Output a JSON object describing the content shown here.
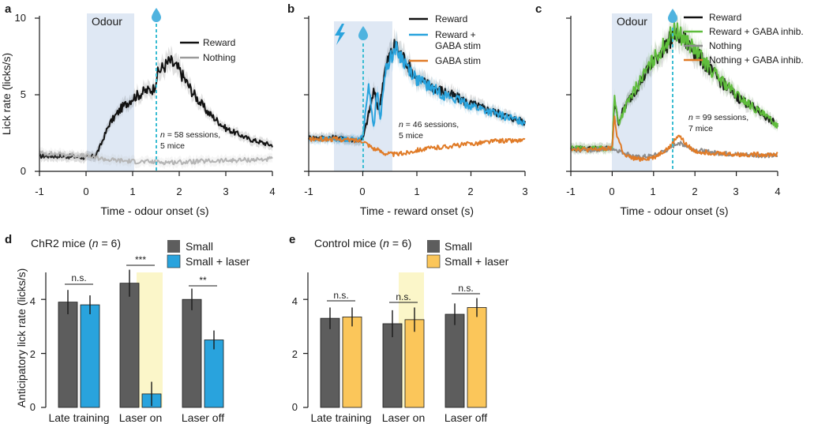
{
  "colors": {
    "black": "#111111",
    "grey": "#8c8c8c",
    "light_grey": "#c8c8c8",
    "blue": "#29a3dd",
    "orange": "#e07b27",
    "green": "#5fbd3c",
    "bar_grey": "#5d5d5d",
    "bar_yellow": "#fbc65a",
    "shade_blue": "#dfe8f4",
    "shade_yellow": "#fbf6c9",
    "cyan_dash": "#3bbdd3"
  },
  "panels": {
    "a": {
      "letter": "a",
      "shade_label": "Odour",
      "legend": [
        "Reward",
        "Nothing"
      ],
      "annotation_n": "n",
      "annotation_rest": " = 58 sessions,",
      "annotation_line2": "5 mice",
      "ylabel": "Lick rate (licks/s)",
      "xlabel": "Time - odour onset (s)",
      "xticks": [
        "-1",
        "0",
        "1",
        "2",
        "3",
        "4"
      ],
      "yticks": [
        "0",
        "5",
        "10"
      ],
      "icons": [
        "drop-icon"
      ]
    },
    "b": {
      "letter": "b",
      "legend": [
        "Reward",
        "Reward +",
        "GABA stim",
        "GABA stim"
      ],
      "annotation_n": "n",
      "annotation_rest": " = 46 sessions,",
      "annotation_line2": "5 mice",
      "xlabel": "Time - reward onset (s)",
      "xticks": [
        "-1",
        "0",
        "1",
        "2",
        "3"
      ],
      "icons": [
        "lightning-icon",
        "drop-icon"
      ]
    },
    "c": {
      "letter": "c",
      "shade_label": "Odour",
      "legend": [
        "Reward",
        "Reward + GABA inhib.",
        "Nothing",
        "Nothing + GABA inhib."
      ],
      "annotation_n": "n",
      "annotation_rest": " = 99 sessions,",
      "annotation_line2": "7 mice",
      "xlabel": "Time - odour onset (s)",
      "xticks": [
        "-1",
        "0",
        "1",
        "2",
        "3",
        "4"
      ],
      "icons": [
        "drop-icon"
      ]
    },
    "d": {
      "letter": "d",
      "title_pre": "ChR2 mice (",
      "title_n": "n",
      "title_post": " = 6)",
      "legend": [
        "Small",
        "Small + laser"
      ],
      "ylabel": "Anticipatory lick rate (licks/s)",
      "yticks": [
        "0",
        "2",
        "4"
      ],
      "groups": [
        "Late training",
        "Laser on",
        "Laser off"
      ],
      "sig": [
        "n.s.",
        "***",
        "**"
      ]
    },
    "e": {
      "letter": "e",
      "title_pre": "Control mice (",
      "title_n": "n",
      "title_post": " = 6)",
      "legend": [
        "Small",
        "Small + laser"
      ],
      "yticks": [
        "0",
        "2",
        "4"
      ],
      "groups": [
        "Late training",
        "Laser on",
        "Laser off"
      ],
      "sig": [
        "n.s.",
        "n.s.",
        "n.s."
      ]
    }
  },
  "chart_data": [
    {
      "panel": "a",
      "type": "line",
      "xlabel": "Time - odour onset (s)",
      "ylabel": "Lick rate (licks/s)",
      "xlim": [
        -1,
        4
      ],
      "ylim": [
        0,
        10
      ],
      "shaded_interval": [
        0,
        1
      ],
      "reward_time": 1.5,
      "series": [
        {
          "name": "Reward",
          "color": "#111111",
          "error_band": true,
          "x": [
            -1,
            -0.5,
            0,
            0.2,
            0.3,
            0.5,
            0.75,
            1.0,
            1.25,
            1.45,
            1.55,
            1.8,
            2.0,
            2.3,
            2.6,
            3.0,
            3.5,
            4.0
          ],
          "y": [
            1.0,
            1.0,
            0.9,
            1.0,
            1.6,
            3.1,
            4.1,
            4.8,
            5.2,
            5.4,
            6.5,
            7.2,
            6.6,
            5.1,
            3.9,
            2.8,
            2.1,
            1.7
          ]
        },
        {
          "name": "Nothing",
          "color": "#b4b4b4",
          "error_band": true,
          "x": [
            -1,
            -0.5,
            0,
            0.5,
            1.0,
            1.5,
            2.0,
            2.5,
            3.0,
            3.5,
            4.0
          ],
          "y": [
            1.2,
            1.1,
            1.0,
            0.75,
            0.65,
            0.6,
            0.6,
            0.65,
            0.7,
            0.75,
            0.8
          ]
        }
      ]
    },
    {
      "panel": "b",
      "type": "line",
      "xlabel": "Time - reward onset (s)",
      "xlim": [
        -1,
        3
      ],
      "ylim": [
        0,
        10
      ],
      "shaded_interval": [
        -0.55,
        0.53
      ],
      "reward_time": 0,
      "series": [
        {
          "name": "Reward",
          "color": "#111111",
          "error_band": true,
          "x": [
            -1,
            -0.5,
            -0.1,
            0,
            0.1,
            0.2,
            0.3,
            0.4,
            0.5,
            0.6,
            0.8,
            1.0,
            1.5,
            2.0,
            2.5,
            3.0
          ],
          "y": [
            2.2,
            2.2,
            2.0,
            2.1,
            3.6,
            5.2,
            4.0,
            6.5,
            7.6,
            8.2,
            7.2,
            6.0,
            5.2,
            4.4,
            3.8,
            3.2
          ]
        },
        {
          "name": "Reward + GABA stim",
          "color": "#29a3dd",
          "error_band": true,
          "x": [
            -1,
            -0.5,
            -0.1,
            0,
            0.05,
            0.12,
            0.2,
            0.27,
            0.32,
            0.4,
            0.5,
            0.6,
            0.8,
            1.0,
            1.5,
            2.0,
            2.5,
            3.0
          ],
          "y": [
            2.1,
            2.1,
            2.1,
            2.2,
            4.2,
            5.6,
            2.8,
            5.4,
            3.2,
            6.2,
            7.4,
            8.0,
            7.0,
            6.0,
            5.0,
            4.3,
            3.7,
            3.2
          ]
        },
        {
          "name": "GABA stim",
          "color": "#e07b27",
          "error_band": false,
          "x": [
            -1,
            -0.5,
            0,
            0.2,
            0.4,
            0.6,
            0.8,
            1.0,
            1.5,
            2.0,
            2.5,
            3.0
          ],
          "y": [
            2.1,
            2.1,
            2.0,
            1.5,
            1.2,
            1.1,
            1.2,
            1.4,
            1.6,
            1.8,
            2.0,
            2.0
          ]
        }
      ]
    },
    {
      "panel": "c",
      "type": "line",
      "xlabel": "Time - odour onset (s)",
      "xlim": [
        -1,
        4
      ],
      "ylim": [
        0,
        10
      ],
      "shaded_interval": [
        0,
        1
      ],
      "reward_time": 1.5,
      "series": [
        {
          "name": "Reward",
          "color": "#111111",
          "error_band": true,
          "x": [
            -1,
            -0.5,
            0,
            0.05,
            0.15,
            0.3,
            0.6,
            1.0,
            1.3,
            1.5,
            1.7,
            2.0,
            2.5,
            3.0,
            3.5,
            4.0
          ],
          "y": [
            1.5,
            1.5,
            1.5,
            4.6,
            3.2,
            4.2,
            5.5,
            7.2,
            8.2,
            9.0,
            8.7,
            7.8,
            6.2,
            4.9,
            4.0,
            3.0
          ]
        },
        {
          "name": "Reward + GABA inhib.",
          "color": "#5fbd3c",
          "error_band": true,
          "x": [
            -1,
            -0.5,
            0,
            0.05,
            0.15,
            0.3,
            0.6,
            1.0,
            1.3,
            1.5,
            1.7,
            2.0,
            2.5,
            3.0,
            3.5,
            4.0
          ],
          "y": [
            1.5,
            1.5,
            1.5,
            4.9,
            3.1,
            4.1,
            5.6,
            7.3,
            8.4,
            9.2,
            8.8,
            7.9,
            6.3,
            5.0,
            4.0,
            3.0
          ]
        },
        {
          "name": "Nothing",
          "color": "#8c8c8c",
          "error_band": false,
          "x": [
            -1,
            -0.5,
            0,
            0.3,
            0.6,
            1.0,
            1.4,
            1.6,
            2.0,
            2.5,
            3.0,
            4.0
          ],
          "y": [
            1.4,
            1.4,
            1.5,
            1.2,
            0.9,
            1.0,
            1.5,
            1.9,
            1.4,
            1.2,
            1.1,
            1.0
          ]
        },
        {
          "name": "Nothing + GABA inhib.",
          "color": "#e07b27",
          "error_band": false,
          "x": [
            -1,
            -0.5,
            0,
            0.05,
            0.12,
            0.3,
            0.6,
            1.0,
            1.4,
            1.6,
            1.8,
            2.0,
            2.5,
            3.0,
            4.0
          ],
          "y": [
            1.5,
            1.4,
            1.5,
            3.6,
            2.3,
            1.0,
            0.8,
            0.9,
            1.6,
            2.4,
            1.7,
            1.3,
            1.2,
            1.1,
            1.1
          ]
        }
      ]
    },
    {
      "panel": "d",
      "type": "bar",
      "title": "ChR2 mice (n = 6)",
      "ylabel": "Anticipatory lick rate (licks/s)",
      "ylim": [
        0,
        5
      ],
      "categories": [
        "Late training",
        "Laser on",
        "Laser off"
      ],
      "highlighted_category": "Laser on",
      "series": [
        {
          "name": "Small",
          "color": "#5d5d5d",
          "values": [
            3.9,
            4.6,
            4.0
          ],
          "errors": [
            0.45,
            0.5,
            0.4
          ]
        },
        {
          "name": "Small + laser",
          "color": "#29a3dd",
          "values": [
            3.8,
            0.5,
            2.5
          ],
          "errors": [
            0.35,
            0.45,
            0.35
          ]
        }
      ],
      "significance": [
        "n.s.",
        "***",
        "**"
      ]
    },
    {
      "panel": "e",
      "type": "bar",
      "title": "Control mice (n = 6)",
      "ylim": [
        0,
        5
      ],
      "categories": [
        "Late training",
        "Laser on",
        "Laser off"
      ],
      "highlighted_category": "Laser on",
      "series": [
        {
          "name": "Small",
          "color": "#5d5d5d",
          "values": [
            3.3,
            3.1,
            3.45
          ],
          "errors": [
            0.4,
            0.5,
            0.4
          ]
        },
        {
          "name": "Small + laser",
          "color": "#fbc65a",
          "values": [
            3.35,
            3.25,
            3.7
          ],
          "errors": [
            0.35,
            0.45,
            0.35
          ]
        }
      ],
      "significance": [
        "n.s.",
        "n.s.",
        "n.s."
      ]
    }
  ]
}
